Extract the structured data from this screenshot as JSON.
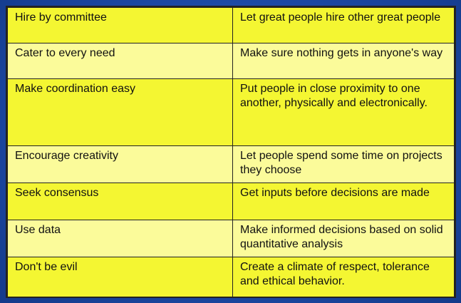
{
  "rows": [
    {
      "principle": "Hire by committee",
      "description": "Let great people hire other great people"
    },
    {
      "principle": "Cater to every need",
      "description": "Make sure nothing gets in anyone's way"
    },
    {
      "principle": "Make coordination easy",
      "description": "Put people in close proximity to one another, physically and electronically."
    },
    {
      "principle": "Encourage creativity",
      "description": "Let people spend some time on projects they choose"
    },
    {
      "principle": "Seek consensus",
      "description": "Get inputs before decisions are made"
    },
    {
      "principle": "Use data",
      "description": "Make informed decisions based on solid quantitative analysis"
    },
    {
      "principle": "Don't be evil",
      "description": "Create a climate of respect, tolerance and ethical behavior."
    }
  ],
  "colors": {
    "row_odd": "#f4f632",
    "row_even": "#fbfb9a",
    "background": "#1d4aa6"
  }
}
